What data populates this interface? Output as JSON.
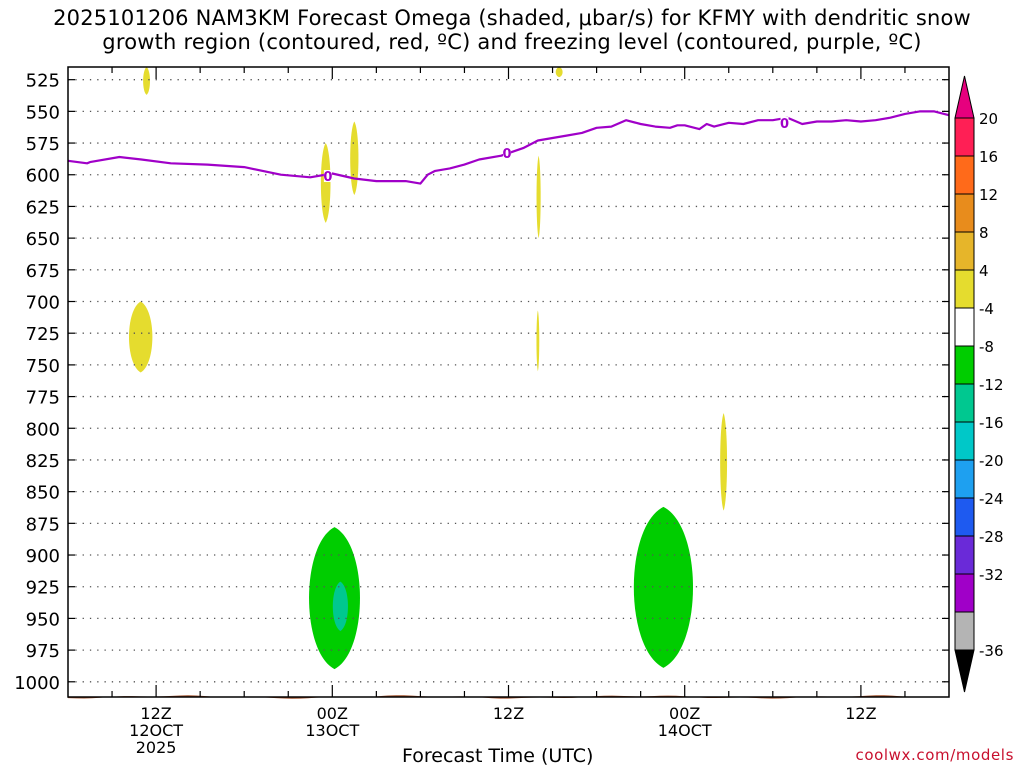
{
  "title": {
    "line1": "2025101206 NAM3KM Forecast Omega (shaded, μbar/s) for KFMY with dendritic snow",
    "line2": "growth region (contoured, red, ºC) and freezing level (contoured, purple, ºC)"
  },
  "credit": "coolwx.com/models",
  "chart_data": {
    "type": "heatmap",
    "xlabel": "Forecast Time (UTC)",
    "ylabel": "",
    "y_ticks": [
      525,
      550,
      575,
      600,
      625,
      650,
      675,
      700,
      725,
      750,
      775,
      800,
      825,
      850,
      875,
      900,
      925,
      950,
      975,
      1000
    ],
    "x_ticks": [
      {
        "hour": 12,
        "lines": [
          "12Z",
          "12OCT",
          "2025"
        ]
      },
      {
        "hour": 24,
        "lines": [
          "00Z",
          "13OCT"
        ]
      },
      {
        "hour": 36,
        "lines": [
          "12Z"
        ]
      },
      {
        "hour": 48,
        "lines": [
          "00Z",
          "14OCT"
        ]
      },
      {
        "hour": 60,
        "lines": [
          "12Z"
        ]
      }
    ],
    "xlim": [
      6,
      66
    ],
    "ylim": [
      515,
      1012
    ],
    "grid": true,
    "colorbar": {
      "labels": [
        "20",
        "16",
        "12",
        "8",
        "4",
        "-4",
        "-8",
        "-12",
        "-16",
        "-20",
        "-24",
        "-28",
        "-32",
        "-36"
      ],
      "colors": [
        "#ff1f55",
        "#ff6a1a",
        "#e88c1c",
        "#e6b52a",
        "#e5dc2e",
        "#ffffff",
        "#00cd00",
        "#00c890",
        "#00c8c8",
        "#1ea0f0",
        "#1e5af0",
        "#6a2ad8",
        "#a000c8",
        "#b4b4b4"
      ],
      "top_arrow_color": "#e6007e",
      "bottom_arrow_color": "#000000"
    },
    "freezing_level": {
      "label": "0",
      "color": "#a000c8",
      "x": [
        6,
        7.3,
        7.5,
        9.5,
        11,
        13,
        15.5,
        18,
        20.5,
        22.5,
        24,
        25.5,
        27,
        29,
        30,
        30.5,
        31,
        32,
        33,
        34,
        35.5,
        37,
        38,
        40,
        41,
        42,
        43,
        44,
        45,
        46,
        47,
        47.5,
        48,
        49,
        49.5,
        50,
        51,
        52,
        53,
        54,
        55,
        56,
        57,
        58,
        59,
        60,
        61,
        62,
        63,
        64,
        65,
        66
      ],
      "y": [
        589,
        591,
        590,
        586,
        588,
        591,
        592,
        594,
        600,
        602,
        599,
        603,
        605,
        605,
        607,
        600,
        597,
        595,
        592,
        588,
        585,
        579,
        573,
        569,
        567,
        563,
        562,
        557,
        560,
        562,
        563,
        561,
        561,
        564,
        560,
        562,
        559,
        560,
        557,
        557,
        555,
        560,
        558,
        558,
        557,
        558,
        557,
        555,
        552,
        550,
        550,
        553
      ],
      "label_points": [
        [
          23.7,
          601
        ],
        [
          35.9,
          583
        ],
        [
          54.8,
          559
        ]
      ]
    },
    "omega_regions": [
      {
        "value_range": "4 to 8",
        "color": "#e5dc2e",
        "center": [
          11.3,
          522
        ],
        "time_range": [
          11.1,
          11.6
        ],
        "p_range": [
          515,
          537
        ]
      },
      {
        "value_range": "4 to 8",
        "color": "#e5dc2e",
        "center": [
          39.4,
          522
        ],
        "time_range": [
          39.2,
          39.7
        ],
        "p_range": [
          515,
          523
        ]
      },
      {
        "value_range": "4 to 8",
        "color": "#e5dc2e",
        "center": [
          23.5,
          605
        ],
        "time_range": [
          23.2,
          23.9
        ],
        "p_range": [
          575,
          638
        ]
      },
      {
        "value_range": "4 to 8",
        "color": "#e5dc2e",
        "center": [
          25.5,
          585
        ],
        "time_range": [
          25.2,
          25.8
        ],
        "p_range": [
          558,
          616
        ]
      },
      {
        "value_range": "4 to 8",
        "color": "#e5dc2e",
        "center": [
          10.9,
          728
        ],
        "time_range": [
          10.1,
          11.8
        ],
        "p_range": [
          700,
          756
        ]
      },
      {
        "value_range": "4 to 8",
        "color": "#e5dc2e",
        "center": [
          38.0,
          615
        ],
        "time_range": [
          37.9,
          38.2
        ],
        "p_range": [
          585,
          650
        ]
      },
      {
        "value_range": "4 to 8",
        "color": "#e5dc2e",
        "center": [
          38.0,
          730
        ],
        "time_range": [
          37.9,
          38.1
        ],
        "p_range": [
          707,
          755
        ]
      },
      {
        "value_range": "4 to 8",
        "color": "#e5dc2e",
        "center": [
          50.6,
          825
        ],
        "time_range": [
          50.4,
          50.9
        ],
        "p_range": [
          788,
          865
        ]
      },
      {
        "value_range": "-4 to -8",
        "color": "#00cd00",
        "center": [
          24.5,
          930
        ],
        "time_range": [
          22.3,
          26.0
        ],
        "p_range": [
          878,
          990
        ]
      },
      {
        "value_range": "-8 to -12",
        "color": "#00c890",
        "center": [
          24.5,
          945
        ],
        "time_range": [
          24.0,
          25.1
        ],
        "p_range": [
          921,
          960
        ]
      },
      {
        "value_range": "-4 to -8",
        "color": "#00cd00",
        "center": [
          47.2,
          915
        ],
        "time_range": [
          44.4,
          48.7
        ],
        "p_range": [
          862,
          989
        ]
      }
    ],
    "terrain": {
      "color": "#a0522d",
      "pressure": 1012
    }
  }
}
